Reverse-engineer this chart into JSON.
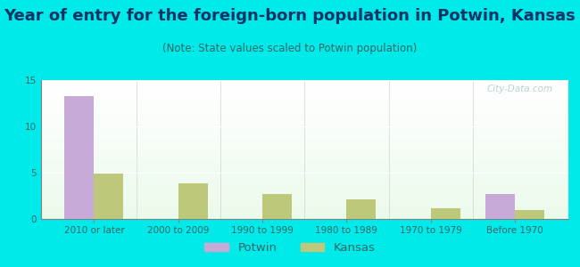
{
  "title": "Year of entry for the foreign-born population in Potwin, Kansas",
  "subtitle": "(Note: State values scaled to Potwin population)",
  "categories": [
    "2010 or later",
    "2000 to 2009",
    "1990 to 1999",
    "1980 to 1989",
    "1970 to 1979",
    "Before 1970"
  ],
  "potwin_values": [
    13.3,
    0,
    0,
    0,
    0,
    2.7
  ],
  "kansas_values": [
    4.9,
    3.8,
    2.7,
    2.1,
    1.2,
    1.0
  ],
  "potwin_color": "#c8aad8",
  "kansas_color": "#bec87a",
  "background_color": "#00eaea",
  "ylim": [
    0,
    15
  ],
  "yticks": [
    0,
    5,
    10,
    15
  ],
  "bar_width": 0.35,
  "title_fontsize": 13,
  "subtitle_fontsize": 8.5,
  "tick_fontsize": 7.5,
  "legend_fontsize": 9.5,
  "title_color": "#003366",
  "subtitle_color": "#336666",
  "tick_color": "#336666",
  "watermark": "City-Data.com"
}
